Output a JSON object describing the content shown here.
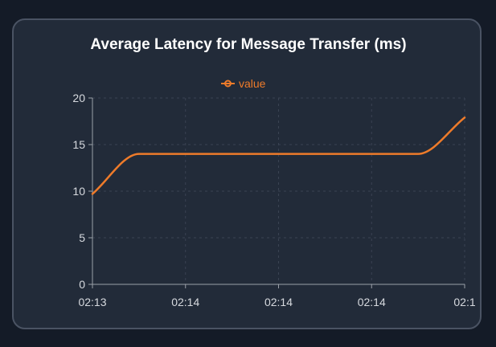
{
  "colors": {
    "page_background": "#141b27",
    "card_background": "#222b39",
    "card_border": "#4a5363",
    "series": "#ee7b2a",
    "grid": "#3a4352",
    "axis": "#9aa0a8",
    "text": "#d6d9de",
    "title": "#ffffff"
  },
  "chart_data": {
    "type": "line",
    "title": "Average Latency for Message Transfer (ms)",
    "xlabel": "",
    "ylabel": "",
    "ylim": [
      0,
      20
    ],
    "yticks": [
      0,
      5,
      10,
      15,
      20
    ],
    "xticks": [
      "02:13",
      "02:14",
      "02:14",
      "02:14",
      "02:1"
    ],
    "grid": true,
    "grid_style": "dashed",
    "legend": "top-center",
    "x": [
      0,
      0.5,
      1.0,
      2.0,
      3.0,
      3.5,
      4.0
    ],
    "series": [
      {
        "name": "value",
        "values": [
          9.7,
          14.0,
          14.0,
          14.0,
          14.0,
          14.0,
          17.9
        ]
      }
    ]
  }
}
